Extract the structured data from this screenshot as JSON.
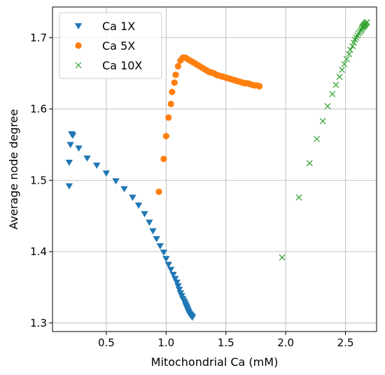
{
  "chart_data": {
    "type": "scatter",
    "title": "",
    "xlabel": "Mitochondrial Ca (mM)",
    "ylabel": "Average node degree",
    "xlim": [
      0.05,
      2.76
    ],
    "ylim": [
      1.288,
      1.743
    ],
    "xticks": [
      0.5,
      1.0,
      1.5,
      2.0,
      2.5
    ],
    "xtick_labels": [
      "0.5",
      "1.0",
      "1.5",
      "2.0",
      "2.5"
    ],
    "yticks": [
      1.3,
      1.4,
      1.5,
      1.6,
      1.7
    ],
    "ytick_labels": [
      "1.3",
      "1.4",
      "1.5",
      "1.6",
      "1.7"
    ],
    "grid": true,
    "legend_position": "top-left",
    "series": [
      {
        "name": "Ca 1X",
        "marker": "triangle-down",
        "color": "#1f77b4",
        "x": [
          0.19,
          0.19,
          0.2,
          0.21,
          0.22,
          0.27,
          0.34,
          0.42,
          0.5,
          0.58,
          0.65,
          0.72,
          0.77,
          0.82,
          0.86,
          0.89,
          0.92,
          0.95,
          0.98,
          1.0,
          1.02,
          1.04,
          1.06,
          1.075,
          1.09,
          1.1,
          1.11,
          1.12,
          1.13,
          1.14,
          1.15,
          1.16,
          1.165,
          1.17,
          1.175,
          1.18,
          1.185,
          1.19,
          1.195,
          1.2,
          1.205,
          1.21,
          1.215,
          1.22
        ],
        "y": [
          1.492,
          1.525,
          1.55,
          1.565,
          1.563,
          1.545,
          1.531,
          1.521,
          1.51,
          1.499,
          1.488,
          1.476,
          1.465,
          1.453,
          1.441,
          1.429,
          1.418,
          1.408,
          1.399,
          1.39,
          1.382,
          1.375,
          1.368,
          1.362,
          1.357,
          1.352,
          1.347,
          1.342,
          1.338,
          1.334,
          1.331,
          1.328,
          1.325,
          1.323,
          1.321,
          1.319,
          1.317,
          1.315,
          1.313,
          1.312,
          1.311,
          1.31,
          1.309,
          1.308
        ]
      },
      {
        "name": "Ca 5X",
        "marker": "circle",
        "color": "#ff7f0e",
        "x": [
          0.94,
          0.98,
          1.0,
          1.02,
          1.04,
          1.05,
          1.07,
          1.08,
          1.1,
          1.12,
          1.14,
          1.16,
          1.18,
          1.2,
          1.22,
          1.24,
          1.26,
          1.28,
          1.3,
          1.32,
          1.34,
          1.36,
          1.38,
          1.4,
          1.42,
          1.44,
          1.46,
          1.48,
          1.5,
          1.52,
          1.54,
          1.56,
          1.58,
          1.6,
          1.62,
          1.64,
          1.66,
          1.68,
          1.7,
          1.72,
          1.74,
          1.76,
          1.78
        ],
        "y": [
          1.484,
          1.53,
          1.562,
          1.588,
          1.607,
          1.624,
          1.637,
          1.648,
          1.66,
          1.668,
          1.672,
          1.672,
          1.67,
          1.668,
          1.666,
          1.664,
          1.662,
          1.66,
          1.658,
          1.656,
          1.654,
          1.652,
          1.651,
          1.65,
          1.648,
          1.647,
          1.646,
          1.645,
          1.644,
          1.643,
          1.642,
          1.641,
          1.64,
          1.639,
          1.638,
          1.637,
          1.636,
          1.636,
          1.635,
          1.634,
          1.633,
          1.633,
          1.632
        ]
      },
      {
        "name": "Ca 10X",
        "marker": "x",
        "color": "#2ca02c",
        "x": [
          1.97,
          2.11,
          2.2,
          2.26,
          2.31,
          2.35,
          2.39,
          2.42,
          2.45,
          2.47,
          2.49,
          2.51,
          2.53,
          2.54,
          2.56,
          2.57,
          2.58,
          2.59,
          2.6,
          2.61,
          2.62,
          2.63,
          2.635,
          2.64,
          2.645,
          2.65,
          2.655,
          2.66,
          2.665,
          2.67,
          2.675,
          2.68
        ],
        "y": [
          1.392,
          1.476,
          1.524,
          1.558,
          1.583,
          1.604,
          1.621,
          1.634,
          1.645,
          1.655,
          1.663,
          1.67,
          1.677,
          1.683,
          1.688,
          1.693,
          1.697,
          1.7,
          1.703,
          1.706,
          1.708,
          1.71,
          1.712,
          1.714,
          1.715,
          1.716,
          1.717,
          1.718,
          1.719,
          1.72,
          1.721,
          1.722
        ]
      }
    ]
  }
}
